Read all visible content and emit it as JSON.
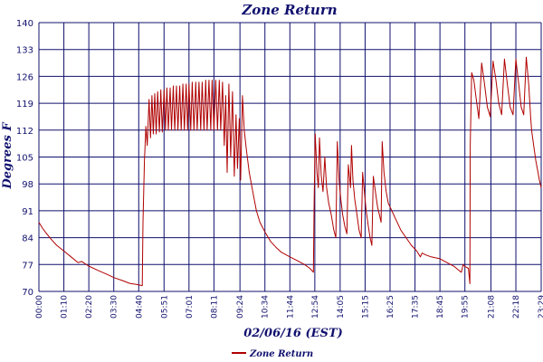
{
  "colors": {
    "series": "#b00000",
    "grid": "#10106e",
    "text": "#10106e",
    "background": "#ffffff"
  },
  "chart_data": {
    "type": "line",
    "title": "Zone Return",
    "xlabel": "02/06/16 (EST)",
    "ylabel": "Degrees F",
    "ylim": [
      70,
      140
    ],
    "yticks": [
      70,
      77,
      84,
      91,
      98,
      105,
      112,
      119,
      126,
      133,
      140
    ],
    "xlim": [
      "00:00",
      "23:29"
    ],
    "xticks": [
      "00:00",
      "01:10",
      "02:20",
      "03:30",
      "04:40",
      "05:51",
      "07:01",
      "08:11",
      "09:24",
      "10:34",
      "11:44",
      "12:54",
      "14:05",
      "15:15",
      "16:25",
      "17:35",
      "18:45",
      "19:55",
      "21:08",
      "22:18",
      "23:29"
    ],
    "grid": true,
    "legend_position": "bottom",
    "series": [
      {
        "name": "Zone Return",
        "color": "#b00000",
        "points": [
          [
            "00:00",
            88.0
          ],
          [
            "00:10",
            86.5
          ],
          [
            "00:20",
            85.2
          ],
          [
            "00:35",
            83.5
          ],
          [
            "00:50",
            82.0
          ],
          [
            "01:10",
            80.5
          ],
          [
            "01:30",
            79.0
          ],
          [
            "01:50",
            77.5
          ],
          [
            "02:00",
            77.8
          ],
          [
            "02:20",
            76.6
          ],
          [
            "02:45",
            75.5
          ],
          [
            "03:10",
            74.5
          ],
          [
            "03:30",
            73.6
          ],
          [
            "03:55",
            72.8
          ],
          [
            "04:15",
            72.1
          ],
          [
            "04:35",
            71.8
          ],
          [
            "04:50",
            71.5
          ],
          [
            "04:52",
            88.0
          ],
          [
            "04:56",
            104.0
          ],
          [
            "05:00",
            113.0
          ],
          [
            "05:04",
            108.0
          ],
          [
            "05:09",
            120.0
          ],
          [
            "05:13",
            110.0
          ],
          [
            "05:17",
            121.0
          ],
          [
            "05:21",
            111.0
          ],
          [
            "05:25",
            121.5
          ],
          [
            "05:29",
            111.0
          ],
          [
            "05:33",
            122.0
          ],
          [
            "05:38",
            111.5
          ],
          [
            "05:42",
            122.5
          ],
          [
            "05:46",
            111.5
          ],
          [
            "05:51",
            122.5
          ],
          [
            "05:55",
            112.0
          ],
          [
            "05:59",
            123.0
          ],
          [
            "06:03",
            112.0
          ],
          [
            "06:08",
            123.0
          ],
          [
            "06:12",
            112.0
          ],
          [
            "06:17",
            123.5
          ],
          [
            "06:21",
            112.0
          ],
          [
            "06:26",
            123.5
          ],
          [
            "06:30",
            112.0
          ],
          [
            "06:35",
            123.5
          ],
          [
            "06:39",
            112.0
          ],
          [
            "06:44",
            124.0
          ],
          [
            "06:48",
            112.0
          ],
          [
            "06:53",
            124.0
          ],
          [
            "06:57",
            112.0
          ],
          [
            "07:01",
            124.0
          ],
          [
            "07:06",
            112.0
          ],
          [
            "07:10",
            124.5
          ],
          [
            "07:15",
            112.0
          ],
          [
            "07:20",
            124.5
          ],
          [
            "07:24",
            112.0
          ],
          [
            "07:29",
            124.5
          ],
          [
            "07:34",
            112.0
          ],
          [
            "07:38",
            124.5
          ],
          [
            "07:43",
            112.0
          ],
          [
            "07:48",
            125.0
          ],
          [
            "07:52",
            112.0
          ],
          [
            "07:57",
            125.0
          ],
          [
            "08:02",
            112.0
          ],
          [
            "08:06",
            125.0
          ],
          [
            "08:11",
            112.0
          ],
          [
            "08:16",
            125.0
          ],
          [
            "08:21",
            112.0
          ],
          [
            "08:26",
            125.0
          ],
          [
            "08:30",
            112.0
          ],
          [
            "08:35",
            124.5
          ],
          [
            "08:40",
            108.0
          ],
          [
            "08:44",
            121.0
          ],
          [
            "08:48",
            101.0
          ],
          [
            "08:53",
            124.0
          ],
          [
            "08:58",
            105.0
          ],
          [
            "09:03",
            122.0
          ],
          [
            "09:08",
            100.0
          ],
          [
            "09:13",
            116.0
          ],
          [
            "09:17",
            102.0
          ],
          [
            "09:22",
            115.0
          ],
          [
            "09:26",
            99.0
          ],
          [
            "09:31",
            121.0
          ],
          [
            "09:36",
            112.0
          ],
          [
            "09:42",
            107.0
          ],
          [
            "09:50",
            101.0
          ],
          [
            "10:00",
            96.0
          ],
          [
            "10:10",
            91.0
          ],
          [
            "10:20",
            88.0
          ],
          [
            "10:34",
            85.5
          ],
          [
            "10:50",
            83.0
          ],
          [
            "11:05",
            81.5
          ],
          [
            "11:20",
            80.2
          ],
          [
            "11:44",
            79.0
          ],
          [
            "12:05",
            78.0
          ],
          [
            "12:25",
            77.0
          ],
          [
            "12:40",
            76.0
          ],
          [
            "12:50",
            75.0
          ],
          [
            "12:52",
            93.0
          ],
          [
            "12:55",
            111.0
          ],
          [
            "13:00",
            101.0
          ],
          [
            "13:04",
            97.0
          ],
          [
            "13:07",
            110.0
          ],
          [
            "13:12",
            100.0
          ],
          [
            "13:17",
            96.0
          ],
          [
            "13:22",
            105.0
          ],
          [
            "13:27",
            97.0
          ],
          [
            "13:33",
            93.0
          ],
          [
            "13:40",
            90.0
          ],
          [
            "13:47",
            86.0
          ],
          [
            "13:53",
            84.0
          ],
          [
            "13:57",
            109.0
          ],
          [
            "14:02",
            99.0
          ],
          [
            "14:07",
            94.0
          ],
          [
            "14:12",
            90.0
          ],
          [
            "14:18",
            87.0
          ],
          [
            "14:24",
            85.0
          ],
          [
            "14:28",
            103.0
          ],
          [
            "14:31",
            100.0
          ],
          [
            "14:34",
            97.0
          ],
          [
            "14:37",
            108.0
          ],
          [
            "14:41",
            99.0
          ],
          [
            "14:46",
            94.0
          ],
          [
            "14:52",
            90.0
          ],
          [
            "14:58",
            86.0
          ],
          [
            "15:04",
            84.0
          ],
          [
            "15:08",
            101.0
          ],
          [
            "15:13",
            96.0
          ],
          [
            "15:18",
            91.0
          ],
          [
            "15:24",
            87.0
          ],
          [
            "15:29",
            84.0
          ],
          [
            "15:34",
            82.0
          ],
          [
            "15:38",
            100.0
          ],
          [
            "15:44",
            96.0
          ],
          [
            "15:50",
            92.0
          ],
          [
            "15:55",
            90.0
          ],
          [
            "16:00",
            88.0
          ],
          [
            "16:03",
            109.0
          ],
          [
            "16:08",
            101.0
          ],
          [
            "16:14",
            96.0
          ],
          [
            "16:20",
            93.0
          ],
          [
            "16:25",
            92.0
          ],
          [
            "16:40",
            89.0
          ],
          [
            "16:55",
            86.0
          ],
          [
            "17:10",
            84.0
          ],
          [
            "17:25",
            82.0
          ],
          [
            "17:40",
            80.5
          ],
          [
            "17:50",
            79.0
          ],
          [
            "17:55",
            80.0
          ],
          [
            "18:05",
            79.5
          ],
          [
            "18:20",
            79.0
          ],
          [
            "18:45",
            78.5
          ],
          [
            "19:05",
            77.5
          ],
          [
            "19:25",
            76.5
          ],
          [
            "19:38",
            75.5
          ],
          [
            "19:45",
            75.0
          ],
          [
            "19:50",
            77.0
          ],
          [
            "19:55",
            76.5
          ],
          [
            "20:05",
            76.0
          ],
          [
            "20:09",
            72.0
          ],
          [
            "20:10",
            108.0
          ],
          [
            "20:14",
            127.0
          ],
          [
            "20:20",
            125.0
          ],
          [
            "20:27",
            120.0
          ],
          [
            "20:34",
            115.0
          ],
          [
            "20:42",
            129.5
          ],
          [
            "20:50",
            124.0
          ],
          [
            "20:58",
            118.0
          ],
          [
            "21:06",
            115.5
          ],
          [
            "21:14",
            130.0
          ],
          [
            "21:22",
            125.0
          ],
          [
            "21:30",
            119.0
          ],
          [
            "21:38",
            116.0
          ],
          [
            "21:46",
            130.5
          ],
          [
            "21:54",
            124.0
          ],
          [
            "22:02",
            118.0
          ],
          [
            "22:10",
            116.0
          ],
          [
            "22:18",
            130.5
          ],
          [
            "22:26",
            124.0
          ],
          [
            "22:33",
            118.0
          ],
          [
            "22:40",
            116.0
          ],
          [
            "22:47",
            131.0
          ],
          [
            "22:54",
            124.0
          ],
          [
            "22:59",
            116.0
          ],
          [
            "23:02",
            112.0
          ],
          [
            "23:08",
            108.0
          ],
          [
            "23:14",
            104.0
          ],
          [
            "23:20",
            101.0
          ],
          [
            "23:24",
            99.0
          ],
          [
            "23:29",
            97.0
          ]
        ]
      }
    ]
  }
}
